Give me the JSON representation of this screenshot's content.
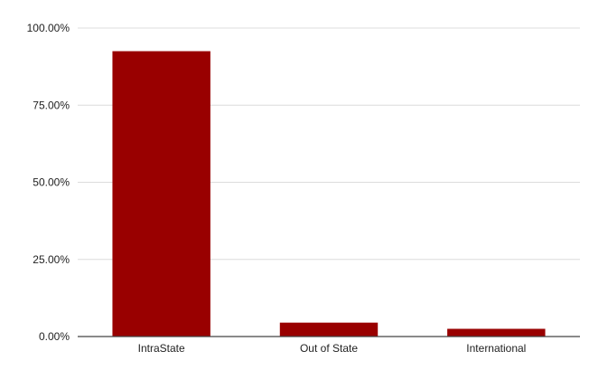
{
  "chart_data": {
    "type": "bar",
    "categories": [
      "IntraState",
      "Out of State",
      "International"
    ],
    "values": [
      92.5,
      4.5,
      2.5
    ],
    "y_ticks": [
      0,
      25,
      50,
      75,
      100
    ],
    "y_tick_labels": [
      "0.00%",
      "25.00%",
      "50.00%",
      "75.00%",
      "100.00%"
    ],
    "ylim": [
      0,
      100
    ],
    "title": "",
    "xlabel": "",
    "ylabel": "",
    "grid": true,
    "bar_color": "#990000"
  }
}
